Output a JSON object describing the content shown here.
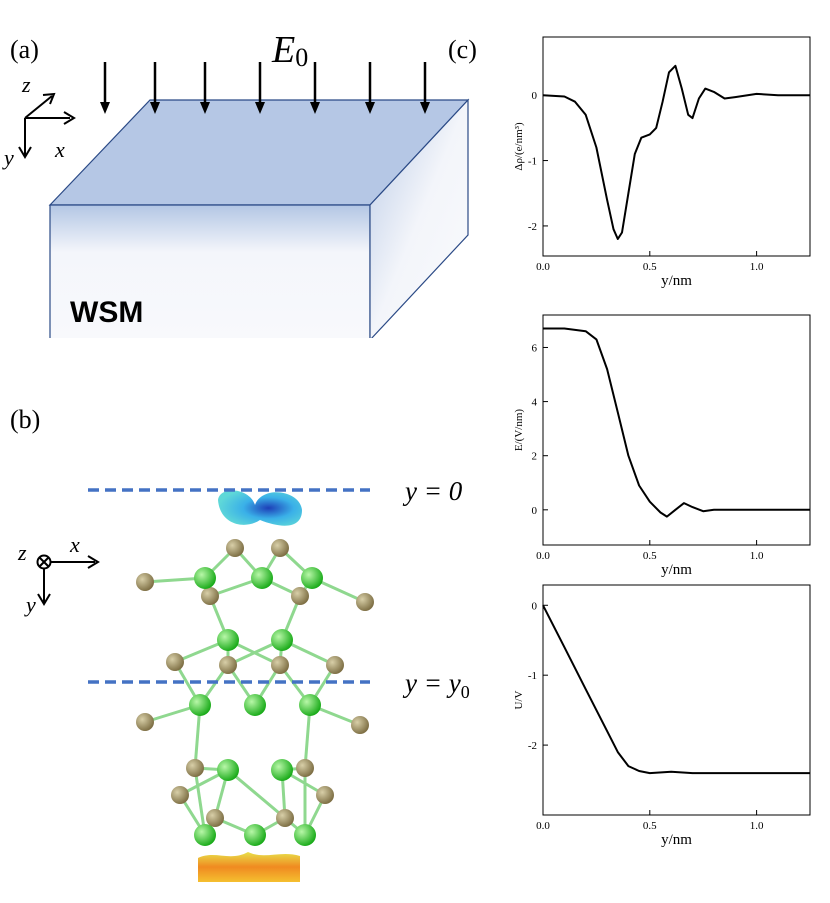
{
  "figure": {
    "panel_a": "(a)",
    "panel_b": "(b)",
    "panel_c": "(c)",
    "field": {
      "base": "E",
      "sub": "0"
    },
    "material": "WSM",
    "axes_a": {
      "z": "z",
      "x": "x",
      "y": "y"
    },
    "axes_b": {
      "z": "z",
      "x": "x",
      "y": "y"
    },
    "line_top": "y = 0",
    "line_mid": {
      "base": "y = y",
      "sub": "0"
    }
  },
  "chart_data": [
    {
      "type": "line",
      "ylabel": "Δρ/(e/nm³)",
      "xlabel": "y/nm",
      "color": "#000000",
      "x": [
        0,
        0.1,
        0.15,
        0.2,
        0.25,
        0.3,
        0.33,
        0.35,
        0.37,
        0.4,
        0.43,
        0.46,
        0.5,
        0.53,
        0.56,
        0.59,
        0.62,
        0.65,
        0.68,
        0.7,
        0.73,
        0.76,
        0.8,
        0.85,
        0.9,
        1.0,
        1.1,
        1.25
      ],
      "values": [
        0,
        -0.02,
        -0.1,
        -0.3,
        -0.8,
        -1.6,
        -2.05,
        -2.2,
        -2.1,
        -1.5,
        -0.9,
        -0.65,
        -0.6,
        -0.5,
        -0.1,
        0.35,
        0.45,
        0.1,
        -0.3,
        -0.35,
        -0.05,
        0.1,
        0.05,
        -0.05,
        -0.03,
        0.02,
        0,
        0
      ],
      "xlim": [
        0,
        1.25
      ],
      "ylim": [
        -2.46,
        0.89
      ],
      "xticks": [
        {
          "value": 0,
          "label": "0.0"
        },
        {
          "value": 0.5,
          "label": "0.5"
        },
        {
          "value": 1,
          "label": "1.0"
        }
      ],
      "yticks": [
        -2,
        -1,
        0
      ]
    },
    {
      "type": "line",
      "ylabel": "E/(V/nm)",
      "xlabel": "y/nm",
      "color": "#000000",
      "x": [
        0,
        0.1,
        0.2,
        0.25,
        0.3,
        0.35,
        0.4,
        0.45,
        0.5,
        0.55,
        0.58,
        0.62,
        0.66,
        0.7,
        0.75,
        0.8,
        1.0,
        1.25
      ],
      "values": [
        6.7,
        6.7,
        6.6,
        6.3,
        5.2,
        3.6,
        2.0,
        0.9,
        0.3,
        -0.1,
        -0.25,
        0,
        0.25,
        0.1,
        -0.05,
        0,
        0,
        0
      ],
      "xlim": [
        0,
        1.25
      ],
      "ylim": [
        -1.3,
        7.2
      ],
      "xticks": [
        {
          "value": 0,
          "label": "0.0"
        },
        {
          "value": 0.5,
          "label": "0.5"
        },
        {
          "value": 1,
          "label": "1.0"
        }
      ],
      "yticks": [
        0,
        2,
        4,
        6
      ]
    },
    {
      "type": "line",
      "ylabel": "U/V",
      "xlabel": "y/nm",
      "color": "#000000",
      "x": [
        0,
        0.1,
        0.2,
        0.3,
        0.35,
        0.4,
        0.45,
        0.5,
        0.6,
        0.7,
        1.0,
        1.25
      ],
      "values": [
        0,
        -0.6,
        -1.2,
        -1.8,
        -2.1,
        -2.3,
        -2.37,
        -2.4,
        -2.38,
        -2.4,
        -2.4,
        -2.4
      ],
      "xlim": [
        0,
        1.25
      ],
      "ylim": [
        -3.0,
        0.29
      ],
      "xticks": [
        {
          "value": 0,
          "label": "0.0"
        },
        {
          "value": 0.5,
          "label": "0.5"
        },
        {
          "value": 1,
          "label": "1.0"
        }
      ],
      "yticks": [
        -2,
        -1,
        0
      ]
    }
  ]
}
